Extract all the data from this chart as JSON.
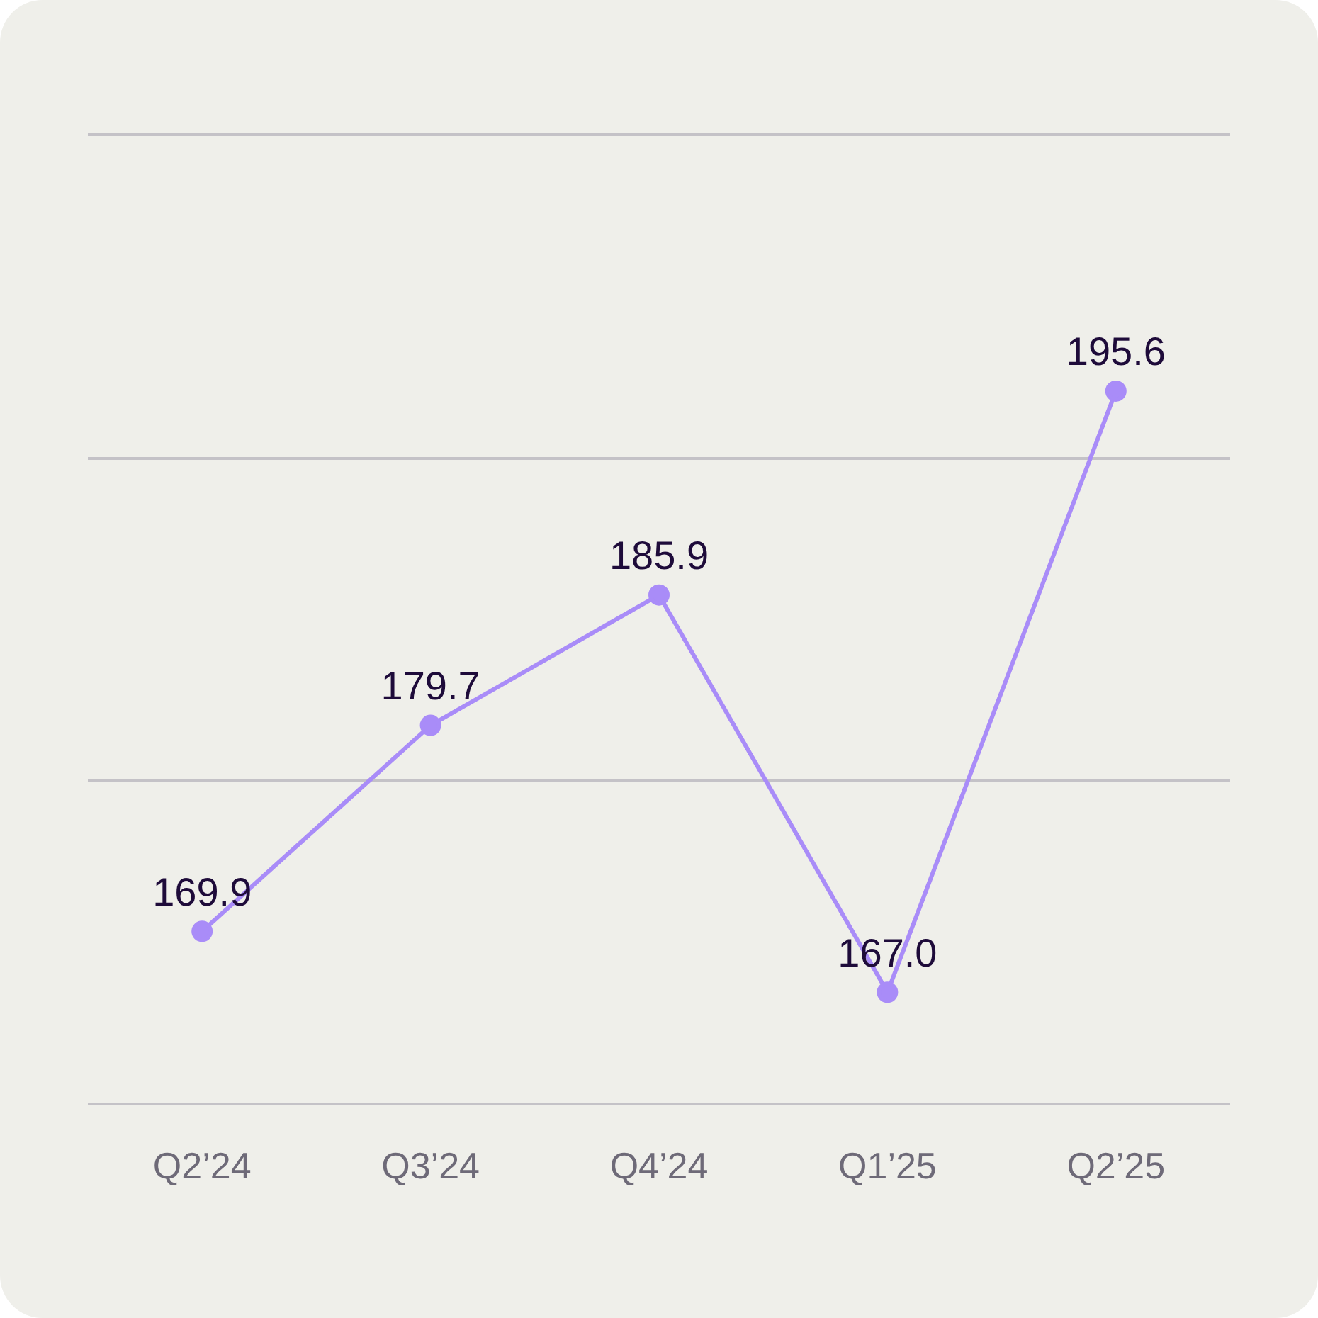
{
  "chart_data": {
    "type": "line",
    "categories": [
      "Q2’24",
      "Q3’24",
      "Q4’24",
      "Q1’25",
      "Q2’25"
    ],
    "series": [
      {
        "color": "#a98cf8",
        "values": [
          169.9,
          179.7,
          185.9,
          167.0,
          195.6
        ],
        "value_labels": [
          "169.9",
          "179.7",
          "185.9",
          "167.0",
          "195.6"
        ]
      }
    ],
    "ylim": [
      161.7,
      207.8
    ],
    "yticks": [
      {
        "value": 161.7,
        "label": null
      },
      {
        "value": 177.1,
        "label": null
      },
      {
        "value": 192.4,
        "label": null
      },
      {
        "value": 207.8,
        "label": null
      }
    ],
    "tick_labels": "x",
    "grid": "y",
    "marker": "circle",
    "line_style": "solid",
    "legend": false
  }
}
